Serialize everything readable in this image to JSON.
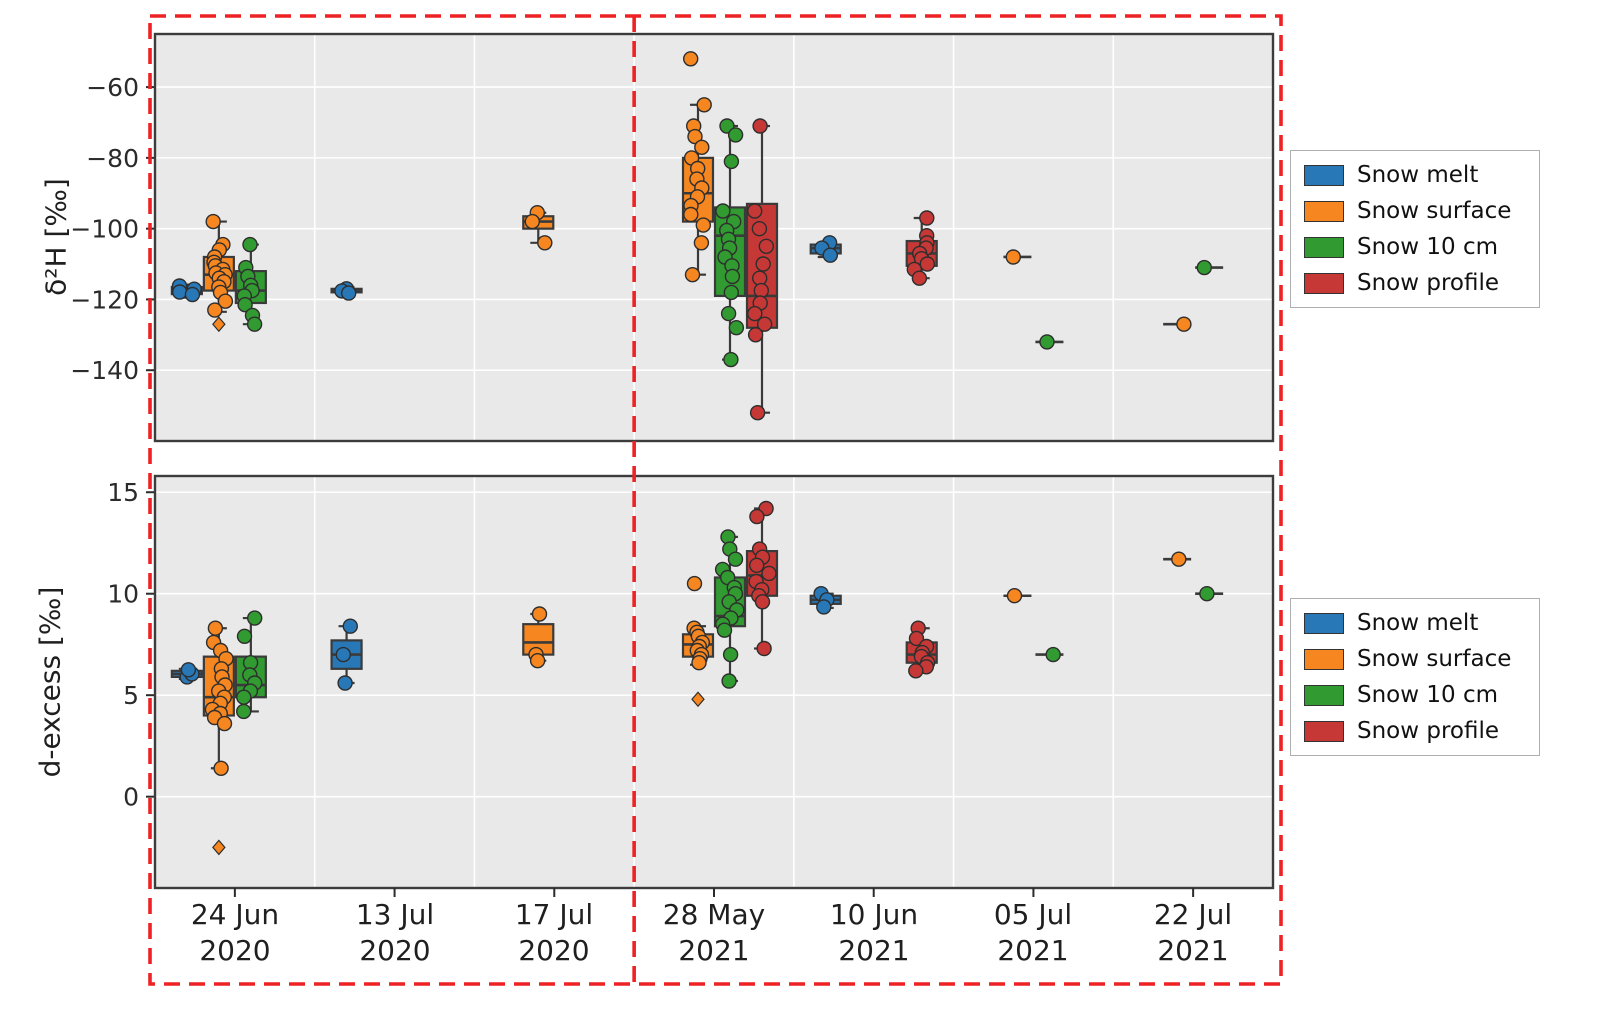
{
  "figure": {
    "bg": "#ffffff",
    "panel_bg": "#e9e9e9",
    "grid": "#ffffff",
    "axis": "#2b2b2b",
    "box_edge": "#3a3a3a",
    "highlight": "#ee2224"
  },
  "legend": {
    "items": [
      {
        "label": "Snow melt",
        "color": "#2878b8"
      },
      {
        "label": "Snow surface",
        "color": "#f6861f"
      },
      {
        "label": "Snow 10 cm",
        "color": "#319a31"
      },
      {
        "label": "Snow profile",
        "color": "#c53836"
      }
    ]
  },
  "chart_data": {
    "type": "boxplot+strip",
    "categories": [
      {
        "line1": "24 Jun",
        "line2": "2020"
      },
      {
        "line1": "13 Jul",
        "line2": "2020"
      },
      {
        "line1": "17 Jul",
        "line2": "2020"
      },
      {
        "line1": "28 May",
        "line2": "2021"
      },
      {
        "line1": "10 Jun",
        "line2": "2021"
      },
      {
        "line1": "05 Jul",
        "line2": "2021"
      },
      {
        "line1": "22 Jul",
        "line2": "2021"
      }
    ],
    "groups": [
      "Snow melt",
      "Snow surface",
      "Snow 10 cm",
      "Snow profile"
    ],
    "annotation": {
      "style": "red dashed frame around figure with vertical divider separating 2020 dates from 2021 dates"
    },
    "panels": [
      {
        "ylabel": "δ²H [‰]",
        "ylim": [
          -160,
          -45
        ],
        "yticks": [
          -60,
          -80,
          -100,
          -120,
          -140
        ],
        "boxes": [
          {
            "c": 0,
            "g": 0,
            "box": {
              "lo": -119.5,
              "q1": -118.5,
              "med": -117.5,
              "q3": -116.5,
              "hi": -115.8
            },
            "points": [
              -116.2,
              -117.1,
              -117.9,
              -118.6
            ]
          },
          {
            "c": 0,
            "g": 1,
            "box": {
              "lo": -123.5,
              "q1": -117.5,
              "med": -113,
              "q3": -108,
              "hi": -98
            },
            "points": [
              -98,
              -104.5,
              -106,
              -108,
              -109.5,
              -110.5,
              -111.5,
              -112.5,
              -113,
              -114,
              -115,
              -116.5,
              -118,
              -120.5,
              -123
            ],
            "fliers": [
              -127
            ]
          },
          {
            "c": 0,
            "g": 2,
            "box": {
              "lo": -127,
              "q1": -121,
              "med": -117.5,
              "q3": -112,
              "hi": -104.5
            },
            "points": [
              -104.5,
              -111,
              -113.5,
              -116,
              -117.5,
              -119,
              -121.5,
              -124.5,
              -127
            ]
          },
          {
            "c": 1,
            "g": 0,
            "box": {
              "lo": -118.4,
              "q1": -118,
              "med": -117.5,
              "q3": -117,
              "hi": -116.6
            },
            "points": [
              -117,
              -117.6,
              -118.2
            ]
          },
          {
            "c": 2,
            "g": 1,
            "box": {
              "lo": -104,
              "q1": -100,
              "med": -98,
              "q3": -96.5,
              "hi": -95.5
            },
            "points": [
              -95.5,
              -98,
              -104
            ]
          },
          {
            "c": 3,
            "g": 1,
            "box": {
              "lo": -113,
              "q1": -98,
              "med": -90,
              "q3": -80,
              "hi": -65
            },
            "points": [
              -52,
              -65,
              -71,
              -74,
              -77,
              -80,
              -83,
              -86,
              -88.5,
              -91,
              -93.5,
              -96,
              -99,
              -104,
              -113
            ]
          },
          {
            "c": 3,
            "g": 2,
            "box": {
              "lo": -137,
              "q1": -119,
              "med": -102,
              "q3": -94,
              "hi": -71
            },
            "points": [
              -71,
              -73.5,
              -81,
              -95,
              -98,
              -100.5,
              -103,
              -105.5,
              -108,
              -110.5,
              -113.5,
              -118,
              -124,
              -128,
              -137
            ]
          },
          {
            "c": 3,
            "g": 3,
            "box": {
              "lo": -152,
              "q1": -128,
              "med": -119,
              "q3": -93,
              "hi": -71
            },
            "points": [
              -71,
              -95,
              -100,
              -105,
              -110,
              -114,
              -117.5,
              -121,
              -124,
              -127,
              -130,
              -152
            ]
          },
          {
            "c": 4,
            "g": 0,
            "box": {
              "lo": -108,
              "q1": -107,
              "med": -105.5,
              "q3": -104.5,
              "hi": -104
            },
            "points": [
              -104,
              -105.5,
              -107.5
            ]
          },
          {
            "c": 4,
            "g": 3,
            "box": {
              "lo": -114,
              "q1": -110.5,
              "med": -107,
              "q3": -103.5,
              "hi": -97
            },
            "points": [
              -97,
              -102,
              -104,
              -105.5,
              -107,
              -108.5,
              -110,
              -111.5,
              -114
            ]
          },
          {
            "c": 5,
            "g": 1,
            "box": {
              "lo": -108,
              "q1": -108,
              "med": -108,
              "q3": -108,
              "hi": -108
            },
            "points": [
              -108
            ]
          },
          {
            "c": 5,
            "g": 2,
            "box": {
              "lo": -132,
              "q1": -132,
              "med": -132,
              "q3": -132,
              "hi": -132
            },
            "points": [
              -132
            ]
          },
          {
            "c": 6,
            "g": 1,
            "box": {
              "lo": -127,
              "q1": -127,
              "med": -127,
              "q3": -127,
              "hi": -127
            },
            "points": [
              -127
            ]
          },
          {
            "c": 6,
            "g": 2,
            "box": {
              "lo": -111,
              "q1": -111,
              "med": -111,
              "q3": -111,
              "hi": -111
            },
            "points": [
              -111
            ]
          }
        ]
      },
      {
        "ylabel": "d-excess [‰]",
        "ylim": [
          -4.5,
          15.8
        ],
        "yticks": [
          0,
          5,
          10,
          15
        ],
        "boxes": [
          {
            "c": 0,
            "g": 0,
            "box": {
              "lo": 5.8,
              "q1": 5.9,
              "med": 6.05,
              "q3": 6.2,
              "hi": 6.3
            },
            "points": [
              5.9,
              6.05,
              6.25
            ]
          },
          {
            "c": 0,
            "g": 1,
            "box": {
              "lo": 1.4,
              "q1": 4.0,
              "med": 4.9,
              "q3": 6.9,
              "hi": 8.3
            },
            "points": [
              8.3,
              7.6,
              7.2,
              6.8,
              6.3,
              5.9,
              5.5,
              5.2,
              4.9,
              4.6,
              4.3,
              4.1,
              3.9,
              3.6,
              1.4
            ],
            "fliers": [
              -2.5
            ]
          },
          {
            "c": 0,
            "g": 2,
            "box": {
              "lo": 4.2,
              "q1": 4.9,
              "med": 5.5,
              "q3": 6.9,
              "hi": 8.8
            },
            "points": [
              8.8,
              7.9,
              6.6,
              6.0,
              5.6,
              5.2,
              4.9,
              4.2
            ]
          },
          {
            "c": 1,
            "g": 0,
            "box": {
              "lo": 5.6,
              "q1": 6.3,
              "med": 7.0,
              "q3": 7.7,
              "hi": 8.4
            },
            "points": [
              8.4,
              7.0,
              5.6
            ]
          },
          {
            "c": 2,
            "g": 1,
            "box": {
              "lo": 6.7,
              "q1": 7.0,
              "med": 7.6,
              "q3": 8.5,
              "hi": 9.0
            },
            "points": [
              9.0,
              7.0,
              6.7
            ]
          },
          {
            "c": 3,
            "g": 1,
            "box": {
              "lo": 6.5,
              "q1": 6.9,
              "med": 7.5,
              "q3": 8.0,
              "hi": 8.4
            },
            "points": [
              10.5,
              8.3,
              8.1,
              7.9,
              7.6,
              7.4,
              7.2,
              7.0,
              6.8,
              6.6
            ],
            "fliers": [
              4.8
            ]
          },
          {
            "c": 3,
            "g": 2,
            "box": {
              "lo": 5.7,
              "q1": 8.4,
              "med": 8.9,
              "q3": 10.8,
              "hi": 12.8
            },
            "points": [
              12.8,
              12.2,
              11.7,
              11.2,
              10.8,
              10.3,
              10.0,
              9.6,
              9.2,
              8.8,
              8.5,
              8.2,
              7.0,
              5.7
            ]
          },
          {
            "c": 3,
            "g": 3,
            "box": {
              "lo": 7.3,
              "q1": 9.9,
              "med": 10.9,
              "q3": 12.1,
              "hi": 14.2
            },
            "points": [
              14.2,
              13.8,
              12.2,
              11.8,
              11.4,
              11.0,
              10.6,
              10.2,
              9.9,
              9.6,
              7.3
            ]
          },
          {
            "c": 4,
            "g": 0,
            "box": {
              "lo": 9.3,
              "q1": 9.5,
              "med": 9.7,
              "q3": 9.9,
              "hi": 10.0
            },
            "points": [
              10.0,
              9.7,
              9.35
            ]
          },
          {
            "c": 4,
            "g": 3,
            "box": {
              "lo": 6.2,
              "q1": 6.6,
              "med": 7.0,
              "q3": 7.6,
              "hi": 8.3
            },
            "points": [
              8.3,
              7.8,
              7.4,
              7.1,
              6.9,
              6.6,
              6.4,
              6.2
            ]
          },
          {
            "c": 5,
            "g": 1,
            "box": {
              "lo": 9.9,
              "q1": 9.9,
              "med": 9.9,
              "q3": 9.9,
              "hi": 9.9
            },
            "points": [
              9.9
            ]
          },
          {
            "c": 5,
            "g": 2,
            "box": {
              "lo": 7.0,
              "q1": 7.0,
              "med": 7.0,
              "q3": 7.0,
              "hi": 7.0
            },
            "points": [
              7.0
            ]
          },
          {
            "c": 6,
            "g": 1,
            "box": {
              "lo": 11.7,
              "q1": 11.7,
              "med": 11.7,
              "q3": 11.7,
              "hi": 11.7
            },
            "points": [
              11.7
            ]
          },
          {
            "c": 6,
            "g": 2,
            "box": {
              "lo": 10.0,
              "q1": 10.0,
              "med": 10.0,
              "q3": 10.0,
              "hi": 10.0
            },
            "points": [
              10.0
            ]
          }
        ]
      }
    ]
  }
}
